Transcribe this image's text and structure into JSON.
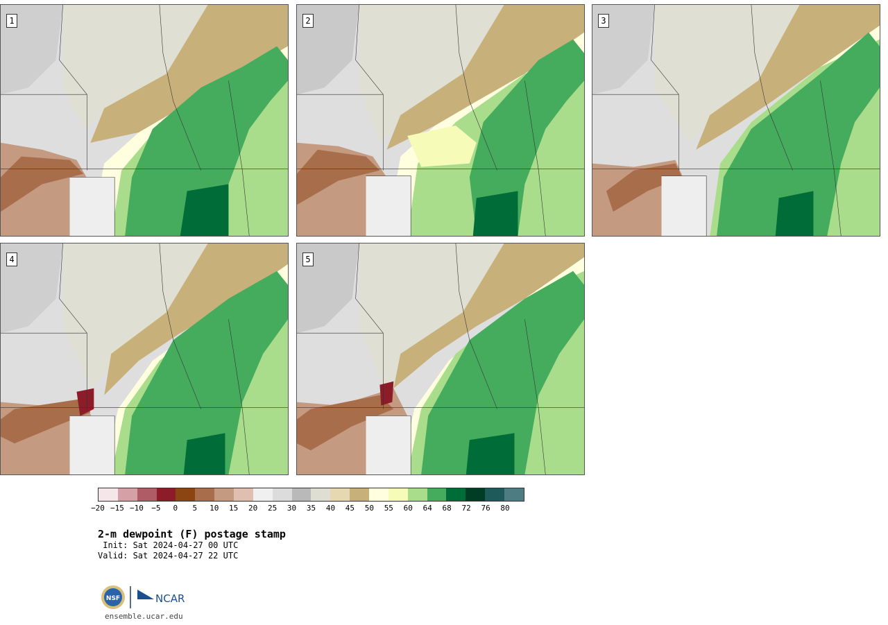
{
  "panels": [
    {
      "label": "1"
    },
    {
      "label": "2"
    },
    {
      "label": "3"
    },
    {
      "label": "4"
    },
    {
      "label": "5"
    }
  ],
  "colorbar": {
    "colors": [
      "#f5e6ea",
      "#d4a1a7",
      "#b05c66",
      "#8c1c28",
      "#8a4513",
      "#a86e4c",
      "#c49a80",
      "#dfc0b0",
      "#f0f0f0",
      "#dcdcdc",
      "#b9b9b9",
      "#deded2",
      "#e6d8b0",
      "#c8b07a",
      "#ffffe0",
      "#f7fbb8",
      "#a9dd8c",
      "#45ac5e",
      "#006d38",
      "#003d24",
      "#1e5a5a",
      "#4d7c82"
    ],
    "ticks": [
      "−20",
      "−15",
      "−10",
      "−5",
      "0",
      "5",
      "10",
      "15",
      "20",
      "25",
      "30",
      "35",
      "40",
      "45",
      "50",
      "55",
      "60",
      "64",
      "68",
      "72",
      "76",
      "80"
    ]
  },
  "title": "2-m dewpoint (F) postage stamp",
  "init_line": " Init: Sat 2024-04-27 00 UTC",
  "valid_line": "Valid: Sat 2024-04-27 22 UTC",
  "logos": {
    "nsf": "NSF",
    "ncar": "NCAR"
  },
  "site": "ensemble.ucar.edu"
}
